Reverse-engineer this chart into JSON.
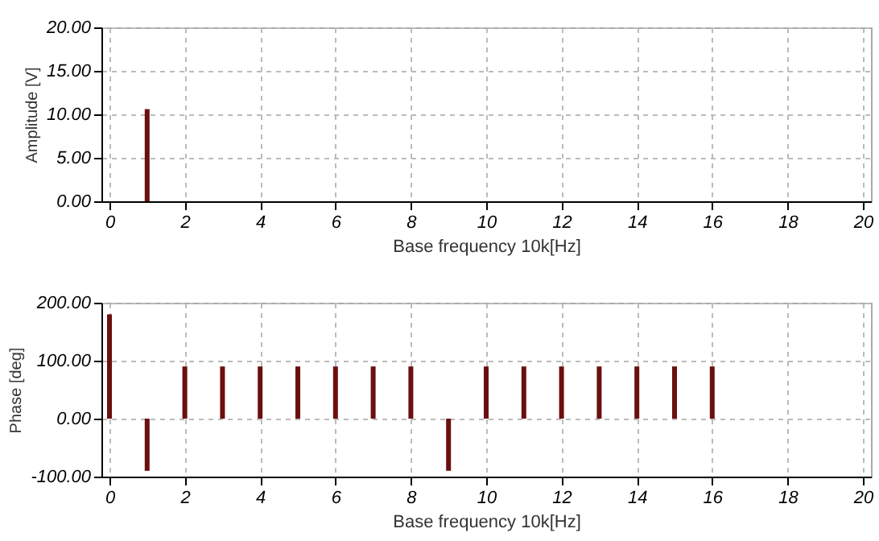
{
  "chart_data": [
    {
      "type": "bar",
      "xlabel": "Base frequency 10k[Hz]",
      "ylabel": "Amplitude [V]",
      "x": [
        1
      ],
      "series": [
        {
          "color": "#6b0f0f",
          "values": [
            10.6
          ]
        }
      ],
      "xlim": [
        0,
        20
      ],
      "xticks": [
        0,
        2,
        4,
        6,
        8,
        10,
        12,
        14,
        16,
        18,
        20
      ],
      "ylim": [
        0,
        20
      ],
      "yticks": [
        {
          "value": 0,
          "label": "0.00"
        },
        {
          "value": 5,
          "label": "5.00"
        },
        {
          "value": 10,
          "label": "10.00"
        },
        {
          "value": 15,
          "label": "15.00"
        },
        {
          "value": 20,
          "label": "20.00"
        }
      ],
      "grid": true
    },
    {
      "type": "bar",
      "xlabel": "Base frequency 10k[Hz]",
      "ylabel": "Phase [deg]",
      "x": [
        0,
        1,
        2,
        3,
        4,
        5,
        6,
        7,
        8,
        9,
        10,
        11,
        12,
        13,
        14,
        15,
        16
      ],
      "series": [
        {
          "color": "#6b0f0f",
          "values": [
            180,
            -90,
            90,
            90,
            90,
            90,
            90,
            90,
            90,
            -90,
            90,
            90,
            90,
            90,
            90,
            90,
            90
          ]
        }
      ],
      "xlim": [
        0,
        20
      ],
      "xticks": [
        0,
        2,
        4,
        6,
        8,
        10,
        12,
        14,
        16,
        18,
        20
      ],
      "ylim": [
        -100,
        200
      ],
      "yticks": [
        {
          "value": -100,
          "label": "-100.00"
        },
        {
          "value": 0,
          "label": "0.00"
        },
        {
          "value": 100,
          "label": "100.00"
        },
        {
          "value": 200,
          "label": "200.00"
        }
      ],
      "grid": true
    }
  ]
}
